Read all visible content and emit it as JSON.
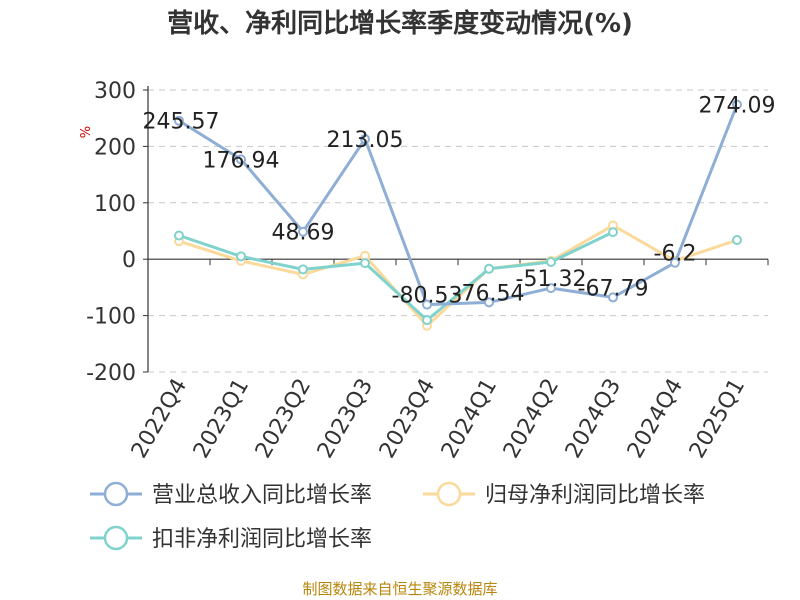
{
  "chart_data": {
    "type": "line",
    "title": "营收、净利同比增长率季度变动情况(%)",
    "ylabel": "%",
    "categories": [
      "2022Q4",
      "2023Q1",
      "2023Q2",
      "2023Q3",
      "2023Q4",
      "2024Q1",
      "2024Q2",
      "2024Q3",
      "2024Q4",
      "2025Q1"
    ],
    "ylim": [
      -200,
      300
    ],
    "yticks": [
      "300",
      "200",
      "100",
      "0",
      "-100",
      "-200"
    ],
    "grid": true,
    "legend_position": "bottom",
    "series": [
      {
        "name": "营业总收入同比增长率",
        "color": "#8eaed6",
        "values": [
          245.57,
          176.94,
          48.69,
          213.05,
          -80.53,
          -76.54,
          -51.32,
          -67.79,
          -6.2,
          274.09
        ],
        "labels": [
          "245.57",
          "176.94",
          "48.69",
          "213.05",
          "-80.53",
          "-76.54",
          "-51.32",
          "-67.79",
          "-6.2",
          "274.09"
        ]
      },
      {
        "name": "归母净利润同比增长率",
        "color": "#fbd99a",
        "values": [
          32,
          -3,
          -27,
          6,
          -118,
          -17,
          -3,
          60,
          -3,
          34
        ]
      },
      {
        "name": "扣非净利润同比增长率",
        "color": "#7fd3cc",
        "values": [
          42,
          5,
          -18,
          -7,
          -108,
          -17,
          -5,
          48,
          null,
          34
        ]
      }
    ],
    "source": "制图数据来自恒生聚源数据库"
  }
}
